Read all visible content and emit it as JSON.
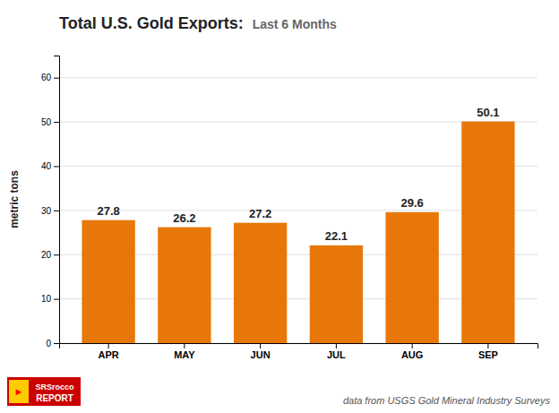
{
  "chart_data": {
    "type": "bar",
    "title": "Total U.S. Gold Exports:",
    "subtitle": "Last 6 Months",
    "ylabel": "metric tons",
    "categories": [
      "APR",
      "MAY",
      "JUN",
      "JUL",
      "AUG",
      "SEP"
    ],
    "values": [
      27.8,
      26.2,
      27.2,
      22.1,
      29.6,
      50.1
    ],
    "color": "#E8770A",
    "ylim": [
      0,
      65
    ],
    "yticks": [
      0,
      10,
      20,
      30,
      40,
      50,
      60
    ],
    "grid": true,
    "data_labels": true,
    "annotations": [
      "data from USGS Gold Mineral Industry Surveys",
      "SRSrocco",
      "REPORT",
      "►"
    ]
  }
}
